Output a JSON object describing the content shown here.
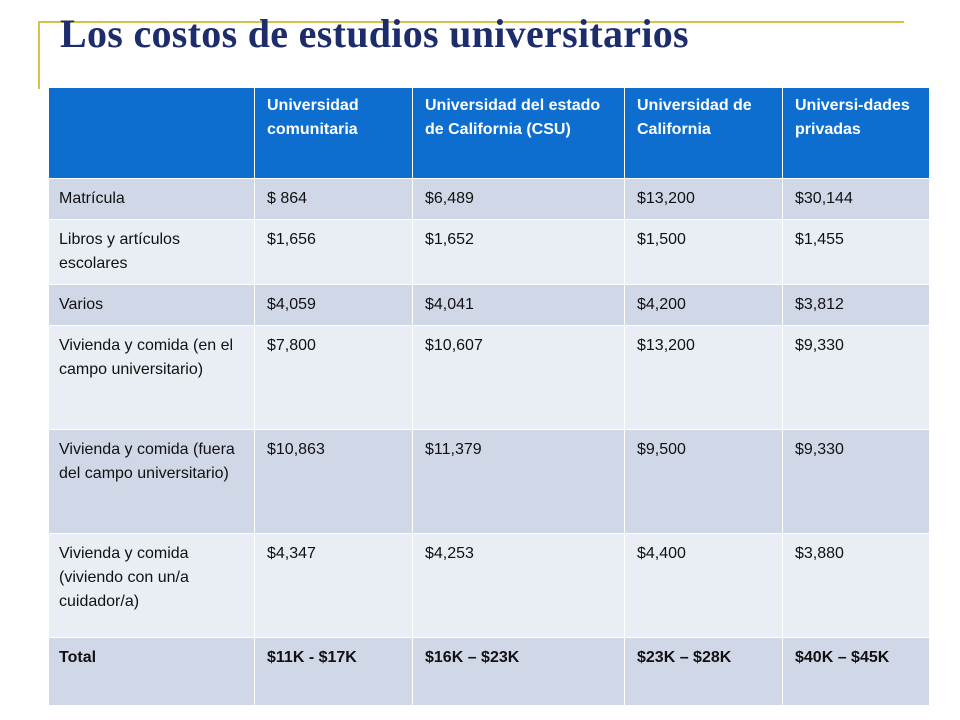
{
  "title": "Los costos de estudios universitarios",
  "table": {
    "headers": [
      "",
      "Universidad comunitaria",
      "Universidad del estado de California (CSU)",
      "Universidad de California",
      "Universi-dades privadas"
    ],
    "rows": [
      {
        "label": "Matrícula",
        "cells": [
          "$ 864",
          "$6,489",
          "$13,200",
          "$30,144"
        ]
      },
      {
        "label": "Libros y artículos escolares",
        "cells": [
          "$1,656",
          "$1,652",
          "$1,500",
          "$1,455"
        ]
      },
      {
        "label": "Varios",
        "cells": [
          "$4,059",
          "$4,041",
          "$4,200",
          "$3,812"
        ]
      },
      {
        "label": "Vivienda y comida (en el campo universitario)",
        "cells": [
          "$7,800",
          "$10,607",
          "$13,200",
          "$9,330"
        ]
      },
      {
        "label": "Vivienda y comida (fuera del campo universitario)",
        "cells": [
          "$10,863",
          "$11,379",
          "$9,500",
          "$9,330"
        ]
      },
      {
        "label": "Vivienda y comida (viviendo con un/a cuidador/a)",
        "cells": [
          "$4,347",
          "$4,253",
          "$4,400",
          "$3,880"
        ]
      },
      {
        "label": "Total",
        "cells": [
          "$11K - $17K",
          "$16K – $23K",
          "$23K – $28K",
          "$40K – $45K"
        ]
      }
    ]
  },
  "colors": {
    "header_bg": "#0d6ecf",
    "row_dark": "#d0d8e8",
    "row_light": "#e9edf4",
    "title": "#1d2d6b",
    "accent_line": "#d4c24a"
  }
}
